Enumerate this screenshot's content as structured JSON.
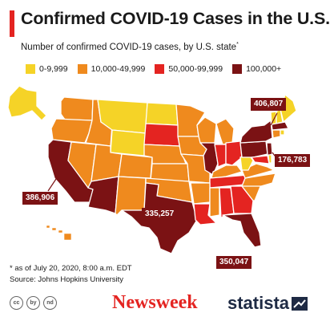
{
  "title": "Confirmed COVID-19 Cases in the U.S.",
  "subtitle": "Number of confirmed COVID-19 cases, by U.S. state",
  "subtitle_mark": "*",
  "colors": {
    "accent": "#e42421",
    "bin1": "#f5d327",
    "bin2": "#ef8a1e",
    "bin3": "#e42421",
    "bin4": "#7b1214",
    "callout_bg": "#7b1214"
  },
  "legend": [
    {
      "label": "0-9,999",
      "color": "#f5d327"
    },
    {
      "label": "10,000-49,999",
      "color": "#ef8a1e"
    },
    {
      "label": "50,000-99,999",
      "color": "#e42421"
    },
    {
      "label": "100,000+",
      "color": "#7b1214"
    }
  ],
  "callouts": {
    "new_york": "406,807",
    "new_jersey": "176,783",
    "california": "386,906",
    "texas": "335,257",
    "florida": "350,047"
  },
  "footnote": {
    "asof": "* as of July 20, 2020, 8:00 a.m. EDT",
    "source": "Source: Johns Hopkins University"
  },
  "license_icons": [
    "cc",
    "by",
    "nd"
  ],
  "brands": {
    "newsweek": "Newsweek",
    "statista": "statista"
  },
  "statista_mark_icon": "statista-logo-icon"
}
